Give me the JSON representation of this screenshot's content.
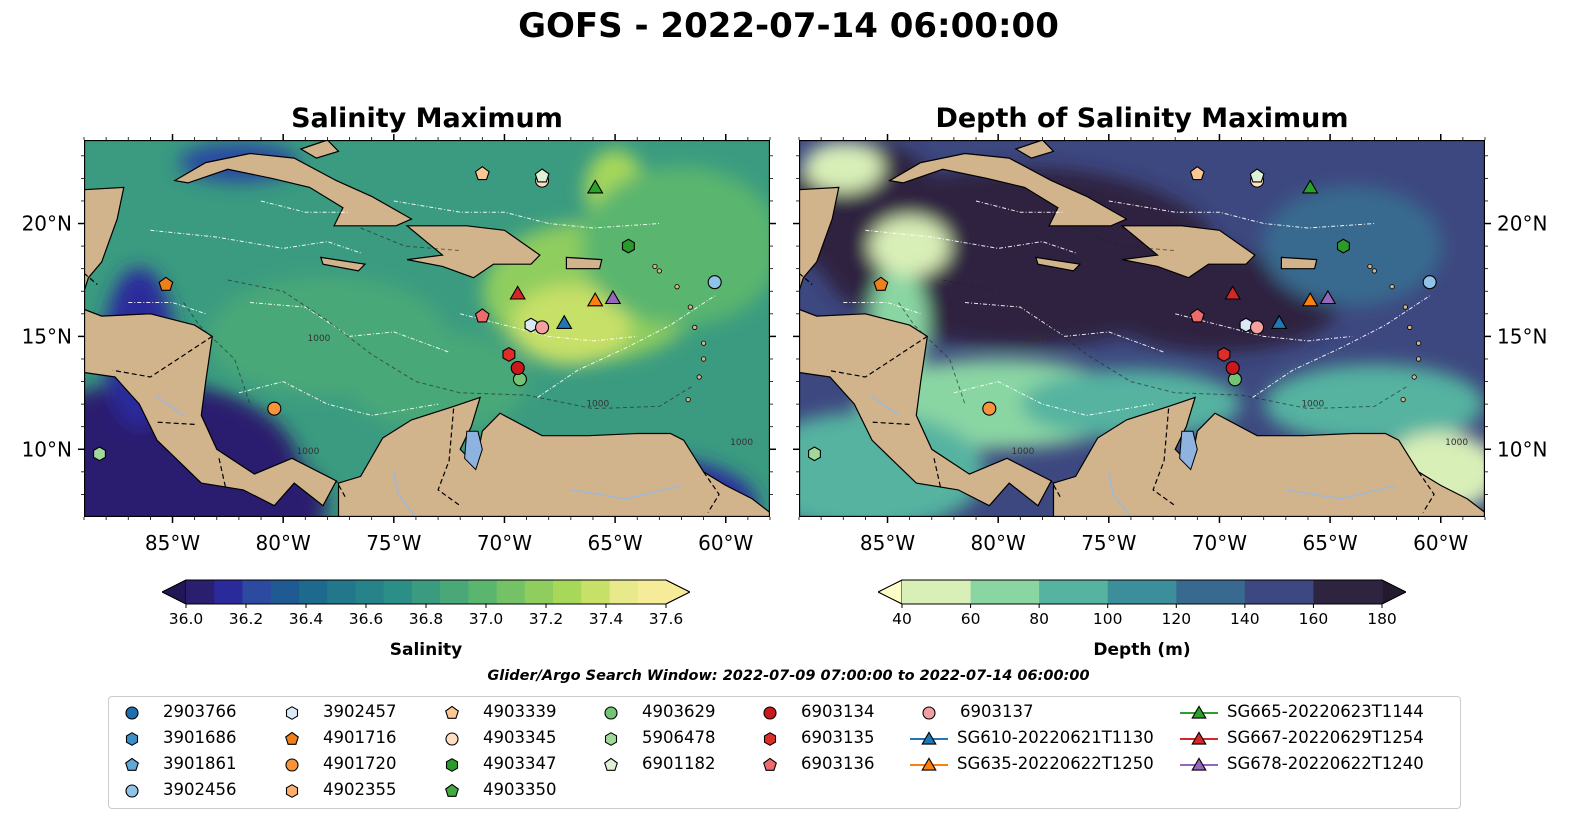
{
  "suptitle": "GOFS - 2022-07-14 06:00:00",
  "left_map": {
    "title": "Salinity Maximum",
    "colorbar": {
      "label": "Salinity",
      "ticks": [
        "36.0",
        "36.2",
        "36.4",
        "36.6",
        "36.8",
        "37.0",
        "37.2",
        "37.4",
        "37.6"
      ],
      "levels": [
        36.0,
        36.1,
        36.2,
        36.3,
        36.4,
        36.5,
        36.6,
        36.7,
        36.8,
        36.9,
        37.0,
        37.1,
        37.2,
        37.3,
        37.4,
        37.5,
        37.6
      ],
      "colors": [
        "#2a1f6e",
        "#2b2a9b",
        "#2b4aa0",
        "#1f5a92",
        "#1d6a8c",
        "#22778a",
        "#26838a",
        "#2c8f87",
        "#3a9b80",
        "#4aa878",
        "#5ab56e",
        "#74c265",
        "#8fcd5e",
        "#a8d85a",
        "#c7e068",
        "#e7e98a",
        "#f6eb98"
      ],
      "under_color": "#231654",
      "over_color": "#f6eb98"
    }
  },
  "right_map": {
    "title": "Depth of Salinity Maximum",
    "colorbar": {
      "label": "Depth (m)",
      "ticks": [
        "40",
        "60",
        "80",
        "100",
        "120",
        "140",
        "160",
        "180"
      ],
      "levels": [
        40,
        60,
        80,
        100,
        120,
        140,
        160,
        180
      ],
      "colors": [
        "#d9efb8",
        "#8ad6a3",
        "#55b3a0",
        "#3c8e9a",
        "#386a8f",
        "#3d4880",
        "#2e2440"
      ],
      "under_color": "#fdfdc8",
      "over_color": "#241a30"
    }
  },
  "axes": {
    "lon_ticks": [
      "85°W",
      "80°W",
      "75°W",
      "70°W",
      "65°W",
      "60°W"
    ],
    "lat_ticks": [
      "20°N",
      "15°N",
      "10°N"
    ],
    "lon_values": [
      -85,
      -80,
      -75,
      -70,
      -65,
      -60
    ],
    "lat_values": [
      20,
      15,
      10
    ],
    "lon_range": [
      -89,
      -58
    ],
    "lat_range": [
      7,
      23.7
    ]
  },
  "contour_labels": [
    "1000",
    "1000",
    "1000",
    "1000"
  ],
  "search_window": "Glider/Argo Search Window: 2022-07-09 07:00:00 to 2022-07-14 06:00:00",
  "colors": {
    "land": "#d2b48c",
    "lake": "#8fb3e0",
    "triangle_blue": "#1f77b4",
    "triangle_orange": "#ff7f0e",
    "triangle_green": "#2ca02c",
    "triangle_red": "#d62728",
    "triangle_purple": "#9467bd"
  },
  "platforms": [
    {
      "name": "2903766",
      "marker": "circle",
      "color": "#1f6fae"
    },
    {
      "name": "3901686",
      "marker": "hexagon",
      "color": "#3c8fc9"
    },
    {
      "name": "3901861",
      "marker": "pentagon",
      "color": "#5fa8d8"
    },
    {
      "name": "3902456",
      "marker": "circle",
      "color": "#8fc4e8",
      "lon": -60.5,
      "lat": 17.4
    },
    {
      "name": "3902457",
      "marker": "hexagon",
      "color": "#dbe9f6",
      "lon": -68.8,
      "lat": 15.5
    },
    {
      "name": "4901716",
      "marker": "pentagon",
      "color": "#ef7f1a",
      "lon": -85.3,
      "lat": 17.3
    },
    {
      "name": "4901720",
      "marker": "circle",
      "color": "#f7933a",
      "lon": -80.4,
      "lat": 11.8
    },
    {
      "name": "4902355",
      "marker": "hexagon",
      "color": "#fdae6b"
    },
    {
      "name": "4903339",
      "marker": "pentagon",
      "color": "#fdc793",
      "lon": -71.0,
      "lat": 22.2
    },
    {
      "name": "4903345",
      "marker": "circle",
      "color": "#fee0c0",
      "lon": -68.3,
      "lat": 21.9
    },
    {
      "name": "4903347",
      "marker": "hexagon",
      "color": "#2b9a2b",
      "lon": -64.4,
      "lat": 19.0
    },
    {
      "name": "4903350",
      "marker": "pentagon",
      "color": "#41ab41"
    },
    {
      "name": "4903629",
      "marker": "circle",
      "color": "#74c476",
      "lon": -69.3,
      "lat": 13.1
    },
    {
      "name": "5906478",
      "marker": "hexagon",
      "color": "#a1d99b",
      "lon": -88.3,
      "lat": 9.8
    },
    {
      "name": "6901182",
      "marker": "pentagon",
      "color": "#dff2d8",
      "lon": -68.3,
      "lat": 22.1
    },
    {
      "name": "6903134",
      "marker": "circle",
      "color": "#cb181d",
      "lon": -69.4,
      "lat": 13.6
    },
    {
      "name": "6903135",
      "marker": "hexagon",
      "color": "#de2d26",
      "lon": -69.8,
      "lat": 14.2
    },
    {
      "name": "6903136",
      "marker": "pentagon",
      "color": "#ef6b6b",
      "lon": -71.0,
      "lat": 15.9
    },
    {
      "name": "6903137",
      "marker": "circle",
      "color": "#f4a0a0",
      "lon": -68.3,
      "lat": 15.4
    },
    {
      "name": "SG610-20220621T1130",
      "marker": "triangle",
      "color": "#1f77b4",
      "lon": -67.3,
      "lat": 15.6
    },
    {
      "name": "SG635-20220622T1250",
      "marker": "triangle",
      "color": "#ff7f0e",
      "lon": -65.9,
      "lat": 16.6
    },
    {
      "name": "SG665-20220623T1144",
      "marker": "triangle",
      "color": "#2ca02c",
      "lon": -65.9,
      "lat": 21.6
    },
    {
      "name": "SG667-20220629T1254",
      "marker": "triangle",
      "color": "#d62728",
      "lon": -69.4,
      "lat": 16.9
    },
    {
      "name": "SG678-20220622T1240",
      "marker": "triangle",
      "color": "#9467bd",
      "lon": -65.1,
      "lat": 16.7
    }
  ],
  "legend_columns": [
    [
      "2903766",
      "3901686",
      "3901861",
      "3902456"
    ],
    [
      "3902457",
      "4901716",
      "4901720",
      "4902355"
    ],
    [
      "4903339",
      "4903345",
      "4903347",
      "4903350"
    ],
    [
      "4903629",
      "5906478",
      "6901182"
    ],
    [
      "6903134",
      "6903135",
      "6903136"
    ],
    [
      "6903137",
      "SG610-20220621T1130",
      "SG635-20220622T1250"
    ],
    [
      "SG665-20220623T1144",
      "SG667-20220629T1254",
      "SG678-20220622T1240"
    ]
  ]
}
